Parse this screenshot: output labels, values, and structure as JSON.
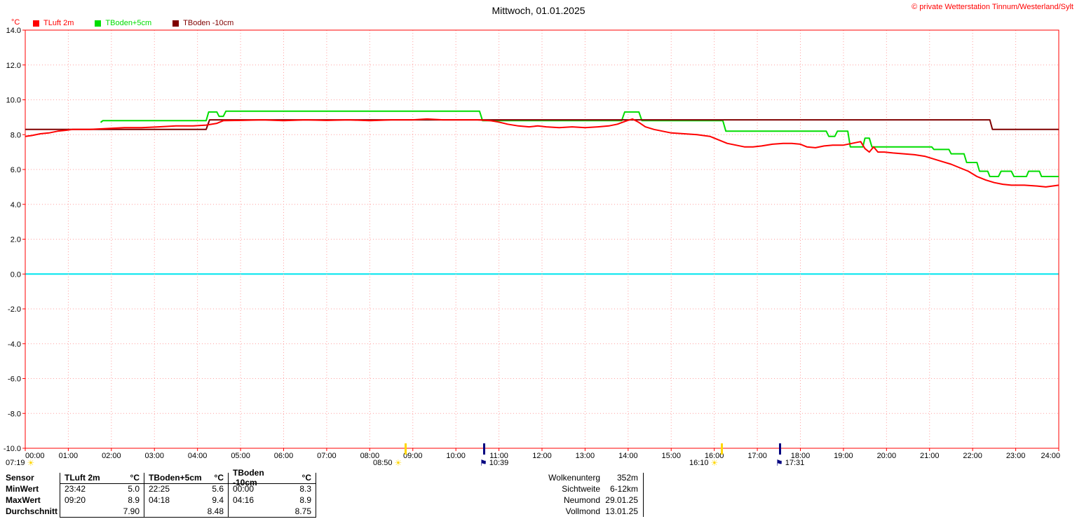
{
  "header": {
    "title": "Mittwoch, 01.01.2025",
    "credit": "© private Wetterstation Tinnum/Westerland/Sylt"
  },
  "chart_data": {
    "type": "line",
    "title": "Mittwoch, 01.01.2025",
    "ylabel": "°C",
    "xlabel": "",
    "ylim": [
      -10,
      14
    ],
    "xlim": [
      0,
      24
    ],
    "grid": true,
    "grid_color": "#ff9f9f",
    "frame_color": "#ff0000",
    "zero_line_color": "#00e5ee",
    "legend_position": "top-left",
    "yticks": [
      14,
      12,
      10,
      8,
      6,
      4,
      2,
      0,
      -2,
      -4,
      -6,
      -8,
      -10
    ],
    "ytick_labels": [
      "14.0",
      "12.0",
      "10.0",
      "8.0",
      "6.0",
      "4.0",
      "2.0",
      "0.0",
      "-2.0",
      "-4.0",
      "-6.0",
      "-8.0",
      "-10.0"
    ],
    "xticks": [
      0,
      1,
      2,
      3,
      4,
      5,
      6,
      7,
      8,
      9,
      10,
      11,
      12,
      13,
      14,
      15,
      16,
      17,
      18,
      19,
      20,
      21,
      22,
      23,
      24
    ],
    "xtick_labels": [
      "00:00",
      "01:00",
      "02:00",
      "03:00",
      "04:00",
      "05:00",
      "06:00",
      "07:00",
      "08:00",
      "09:00",
      "10:00",
      "11:00",
      "12:00",
      "13:00",
      "14:00",
      "15:00",
      "16:00",
      "17:00",
      "18:00",
      "19:00",
      "20:00",
      "21:00",
      "22:00",
      "23:00",
      "24:00"
    ],
    "series": [
      {
        "name": "TLuft 2m",
        "color": "#ff0000",
        "draw_order": 2,
        "points": [
          [
            0,
            7.9
          ],
          [
            0.15,
            7.95
          ],
          [
            0.35,
            8.05
          ],
          [
            0.55,
            8.1
          ],
          [
            0.75,
            8.2
          ],
          [
            0.95,
            8.25
          ],
          [
            1.1,
            8.3
          ],
          [
            1.5,
            8.3
          ],
          [
            1.9,
            8.35
          ],
          [
            2.3,
            8.4
          ],
          [
            2.7,
            8.4
          ],
          [
            3.1,
            8.45
          ],
          [
            3.5,
            8.5
          ],
          [
            3.9,
            8.5
          ],
          [
            4.2,
            8.55
          ],
          [
            4.45,
            8.65
          ],
          [
            4.6,
            8.8
          ],
          [
            5,
            8.82
          ],
          [
            5.5,
            8.85
          ],
          [
            6,
            8.8
          ],
          [
            6.5,
            8.85
          ],
          [
            7,
            8.82
          ],
          [
            7.5,
            8.85
          ],
          [
            8,
            8.8
          ],
          [
            8.5,
            8.85
          ],
          [
            9,
            8.85
          ],
          [
            9.33,
            8.9
          ],
          [
            9.7,
            8.85
          ],
          [
            10.1,
            8.85
          ],
          [
            10.5,
            8.85
          ],
          [
            10.8,
            8.8
          ],
          [
            11,
            8.72
          ],
          [
            11.2,
            8.6
          ],
          [
            11.45,
            8.5
          ],
          [
            11.7,
            8.45
          ],
          [
            11.9,
            8.5
          ],
          [
            12.1,
            8.45
          ],
          [
            12.4,
            8.4
          ],
          [
            12.7,
            8.45
          ],
          [
            13,
            8.4
          ],
          [
            13.3,
            8.45
          ],
          [
            13.55,
            8.5
          ],
          [
            13.75,
            8.6
          ],
          [
            13.95,
            8.78
          ],
          [
            14.1,
            8.9
          ],
          [
            14.25,
            8.7
          ],
          [
            14.4,
            8.45
          ],
          [
            14.6,
            8.3
          ],
          [
            14.8,
            8.2
          ],
          [
            15,
            8.1
          ],
          [
            15.3,
            8.05
          ],
          [
            15.6,
            8
          ],
          [
            15.9,
            7.9
          ],
          [
            16.1,
            7.7
          ],
          [
            16.3,
            7.5
          ],
          [
            16.5,
            7.4
          ],
          [
            16.7,
            7.3
          ],
          [
            16.9,
            7.3
          ],
          [
            17.1,
            7.35
          ],
          [
            17.35,
            7.45
          ],
          [
            17.6,
            7.5
          ],
          [
            17.8,
            7.5
          ],
          [
            18,
            7.45
          ],
          [
            18.15,
            7.3
          ],
          [
            18.35,
            7.25
          ],
          [
            18.55,
            7.35
          ],
          [
            18.75,
            7.4
          ],
          [
            19,
            7.4
          ],
          [
            19.2,
            7.5
          ],
          [
            19.4,
            7.6
          ],
          [
            19.5,
            7.2
          ],
          [
            19.6,
            7
          ],
          [
            19.7,
            7.3
          ],
          [
            19.8,
            7
          ],
          [
            19.95,
            7
          ],
          [
            20.15,
            6.95
          ],
          [
            20.4,
            6.9
          ],
          [
            20.65,
            6.85
          ],
          [
            20.9,
            6.75
          ],
          [
            21.1,
            6.6
          ],
          [
            21.3,
            6.45
          ],
          [
            21.5,
            6.3
          ],
          [
            21.7,
            6.1
          ],
          [
            21.9,
            5.9
          ],
          [
            22.1,
            5.6
          ],
          [
            22.3,
            5.4
          ],
          [
            22.5,
            5.25
          ],
          [
            22.7,
            5.15
          ],
          [
            22.9,
            5.1
          ],
          [
            23.2,
            5.1
          ],
          [
            23.5,
            5.05
          ],
          [
            23.7,
            5
          ],
          [
            23.85,
            5.05
          ],
          [
            24,
            5.1
          ]
        ]
      },
      {
        "name": "TBoden+5cm",
        "color": "#00dd00",
        "draw_order": 0,
        "points": [
          [
            1.75,
            8.7
          ],
          [
            1.8,
            8.8
          ],
          [
            4.2,
            8.8
          ],
          [
            4.26,
            9.3
          ],
          [
            4.45,
            9.3
          ],
          [
            4.5,
            9.05
          ],
          [
            4.6,
            9.05
          ],
          [
            4.66,
            9.35
          ],
          [
            10.55,
            9.35
          ],
          [
            10.62,
            8.8
          ],
          [
            13.85,
            8.8
          ],
          [
            13.92,
            9.3
          ],
          [
            14.25,
            9.3
          ],
          [
            14.32,
            8.8
          ],
          [
            16.2,
            8.8
          ],
          [
            16.27,
            8.2
          ],
          [
            18.6,
            8.2
          ],
          [
            18.66,
            7.9
          ],
          [
            18.8,
            7.9
          ],
          [
            18.86,
            8.2
          ],
          [
            19.1,
            8.2
          ],
          [
            19.16,
            7.3
          ],
          [
            19.45,
            7.3
          ],
          [
            19.5,
            7.8
          ],
          [
            19.6,
            7.8
          ],
          [
            19.66,
            7.3
          ],
          [
            21.05,
            7.3
          ],
          [
            21.1,
            7.15
          ],
          [
            21.45,
            7.15
          ],
          [
            21.5,
            6.9
          ],
          [
            21.8,
            6.9
          ],
          [
            21.86,
            6.4
          ],
          [
            22.1,
            6.4
          ],
          [
            22.16,
            5.9
          ],
          [
            22.35,
            5.9
          ],
          [
            22.4,
            5.6
          ],
          [
            22.6,
            5.6
          ],
          [
            22.66,
            5.9
          ],
          [
            22.9,
            5.9
          ],
          [
            22.96,
            5.6
          ],
          [
            23.25,
            5.6
          ],
          [
            23.3,
            5.9
          ],
          [
            23.55,
            5.9
          ],
          [
            23.6,
            5.6
          ],
          [
            24,
            5.6
          ]
        ]
      },
      {
        "name": "TBoden -10cm",
        "color": "#800000",
        "draw_order": 1,
        "points": [
          [
            0,
            8.3
          ],
          [
            4.2,
            8.3
          ],
          [
            4.28,
            8.85
          ],
          [
            22.4,
            8.85
          ],
          [
            22.46,
            8.3
          ],
          [
            24,
            8.3
          ]
        ]
      }
    ]
  },
  "markers": {
    "colors": {
      "sun": "#ffd700",
      "flag": "#000080"
    },
    "items": [
      {
        "name": "morning-twilight",
        "time": "07:19",
        "icon": "sun",
        "fixed_left": 8
      },
      {
        "name": "sunrise",
        "time": "08:50",
        "icon": "sun",
        "hour": 8.83
      },
      {
        "name": "moonrise",
        "time": "10:39",
        "icon": "flag",
        "hour": 10.65
      },
      {
        "name": "sunset",
        "time": "16:10",
        "icon": "sun",
        "hour": 16.17
      },
      {
        "name": "moonset",
        "time": "17:31",
        "icon": "flag",
        "hour": 17.52
      }
    ]
  },
  "stats_table": {
    "corner": "Sensor",
    "row_labels": [
      "MinWert",
      "MaxWert",
      "Durchschnitt"
    ],
    "columns": [
      {
        "name": "TLuft 2m",
        "unit": "°C",
        "min_time": "23:42",
        "min": "5.0",
        "max_time": "09:20",
        "max": "8.9",
        "avg": "7.90"
      },
      {
        "name": "TBoden+5cm",
        "unit": "°C",
        "min_time": "22:25",
        "min": "5.6",
        "max_time": "04:18",
        "max": "9.4",
        "avg": "8.48"
      },
      {
        "name": "TBoden -10cm",
        "unit": "°C",
        "min_time": "00:00",
        "min": "8.3",
        "max_time": "04:16",
        "max": "8.9",
        "avg": "8.75"
      }
    ]
  },
  "astro": {
    "rows": [
      {
        "label": "Wolkenunterg",
        "value": "352m"
      },
      {
        "label": "Sichtweite",
        "value": "6-12km"
      },
      {
        "label": "Neumond",
        "value": "29.01.25"
      },
      {
        "label": "Vollmond",
        "value": "13.01.25"
      }
    ]
  }
}
